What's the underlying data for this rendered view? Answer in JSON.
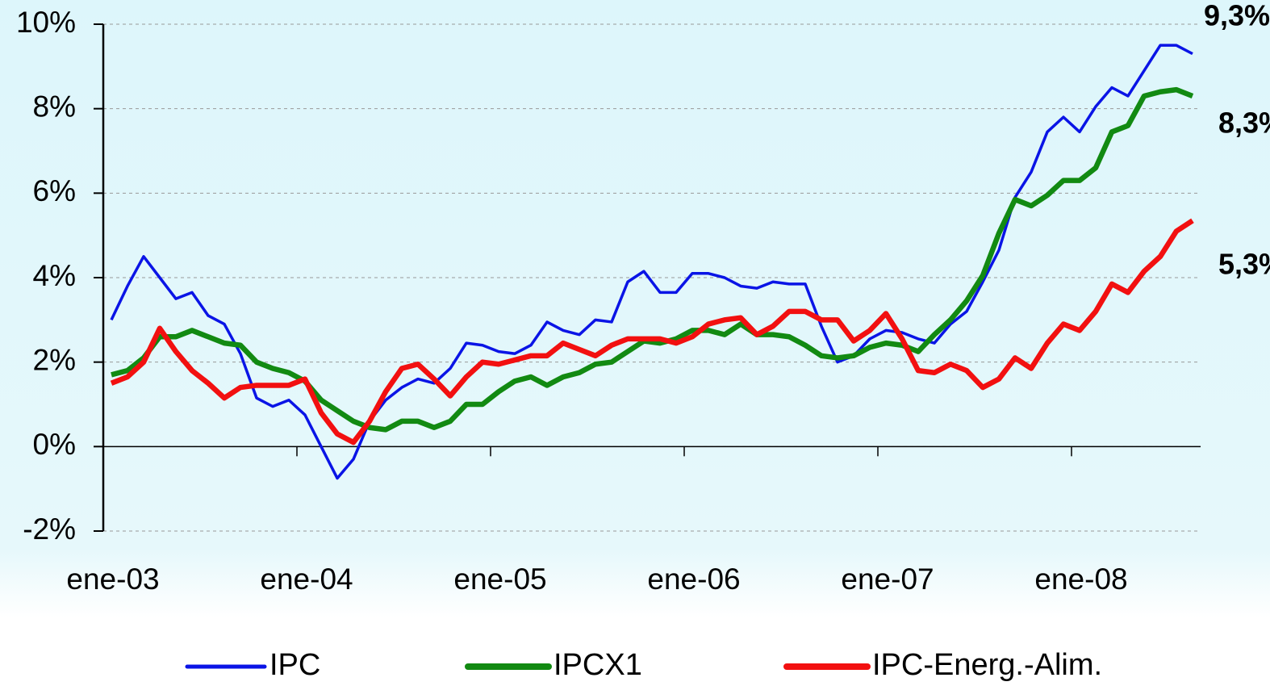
{
  "chart_data": {
    "type": "line",
    "categories": [
      "ene-03",
      null,
      null,
      null,
      null,
      null,
      null,
      null,
      null,
      null,
      null,
      null,
      "ene-04",
      null,
      null,
      null,
      null,
      null,
      null,
      null,
      null,
      null,
      null,
      null,
      "ene-05",
      null,
      null,
      null,
      null,
      null,
      null,
      null,
      null,
      null,
      null,
      null,
      "ene-06",
      null,
      null,
      null,
      null,
      null,
      null,
      null,
      null,
      null,
      null,
      null,
      "ene-07",
      null,
      null,
      null,
      null,
      null,
      null,
      null,
      null,
      null,
      null,
      null,
      "ene-08",
      null,
      null,
      null,
      null,
      null,
      null,
      null
    ],
    "ylim": [
      -2,
      10
    ],
    "yticks": [
      {
        "value": -2,
        "label": "-2%"
      },
      {
        "value": 0,
        "label": "0%"
      },
      {
        "value": 2,
        "label": "2%"
      },
      {
        "value": 4,
        "label": "4%"
      },
      {
        "value": 6,
        "label": "6%"
      },
      {
        "value": 8,
        "label": "8%"
      },
      {
        "value": 10,
        "label": "10%"
      }
    ],
    "grid": true,
    "legend": "bottom",
    "series": [
      {
        "name": "IPC",
        "color": "#0a14e6",
        "width": 3.5,
        "values": [
          3.0,
          3.8,
          4.5,
          4.0,
          3.5,
          3.65,
          3.1,
          2.9,
          2.2,
          1.15,
          0.95,
          1.1,
          0.75,
          0.0,
          -0.75,
          -0.3,
          0.6,
          1.1,
          1.4,
          1.6,
          1.5,
          1.85,
          2.45,
          2.4,
          2.25,
          2.2,
          2.4,
          2.95,
          2.75,
          2.65,
          3.0,
          2.95,
          3.9,
          4.15,
          3.65,
          3.65,
          4.1,
          4.1,
          4.0,
          3.8,
          3.75,
          3.9,
          3.85,
          3.85,
          2.85,
          2.0,
          2.15,
          2.55,
          2.75,
          2.7,
          2.55,
          2.45,
          2.9,
          3.2,
          3.9,
          4.65,
          5.9,
          6.5,
          7.45,
          7.8,
          7.45,
          8.05,
          8.5,
          8.3,
          8.9,
          9.5,
          9.5,
          9.3
        ]
      },
      {
        "name": "IPCX1",
        "color": "#128a12",
        "width": 6.5,
        "values": [
          1.7,
          1.8,
          2.1,
          2.6,
          2.6,
          2.75,
          2.6,
          2.45,
          2.4,
          2.0,
          1.85,
          1.75,
          1.55,
          1.1,
          0.85,
          0.6,
          0.45,
          0.4,
          0.6,
          0.6,
          0.45,
          0.6,
          1.0,
          1.0,
          1.3,
          1.55,
          1.65,
          1.45,
          1.65,
          1.75,
          1.95,
          2.0,
          2.25,
          2.5,
          2.45,
          2.55,
          2.75,
          2.75,
          2.65,
          2.9,
          2.65,
          2.65,
          2.6,
          2.4,
          2.15,
          2.1,
          2.15,
          2.35,
          2.45,
          2.4,
          2.25,
          2.65,
          3.0,
          3.45,
          4.05,
          5.05,
          5.85,
          5.7,
          5.95,
          6.3,
          6.3,
          6.6,
          7.45,
          7.6,
          8.3,
          8.4,
          8.45,
          8.3
        ]
      },
      {
        "name": "IPC-Energ.-Alim.",
        "color": "#f21010",
        "width": 6.5,
        "values": [
          1.5,
          1.65,
          2.0,
          2.8,
          2.25,
          1.8,
          1.5,
          1.15,
          1.4,
          1.45,
          1.45,
          1.45,
          1.6,
          0.8,
          0.3,
          0.1,
          0.6,
          1.3,
          1.85,
          1.95,
          1.6,
          1.2,
          1.65,
          2.0,
          1.95,
          2.05,
          2.15,
          2.15,
          2.45,
          2.3,
          2.15,
          2.4,
          2.55,
          2.55,
          2.55,
          2.45,
          2.6,
          2.9,
          3.0,
          3.05,
          2.65,
          2.85,
          3.2,
          3.2,
          3.0,
          3.0,
          2.5,
          2.75,
          3.15,
          2.55,
          1.8,
          1.75,
          1.95,
          1.8,
          1.4,
          1.6,
          2.1,
          1.85,
          2.45,
          2.9,
          2.75,
          3.2,
          3.85,
          3.65,
          4.15,
          4.5,
          5.1,
          5.35
        ]
      }
    ],
    "annotations": [
      {
        "text": "9,3%",
        "color": "#0a14e6"
      },
      {
        "text": "8,3%",
        "color": "#128a12"
      },
      {
        "text": "5,3%",
        "color": "#f21010"
      }
    ]
  }
}
